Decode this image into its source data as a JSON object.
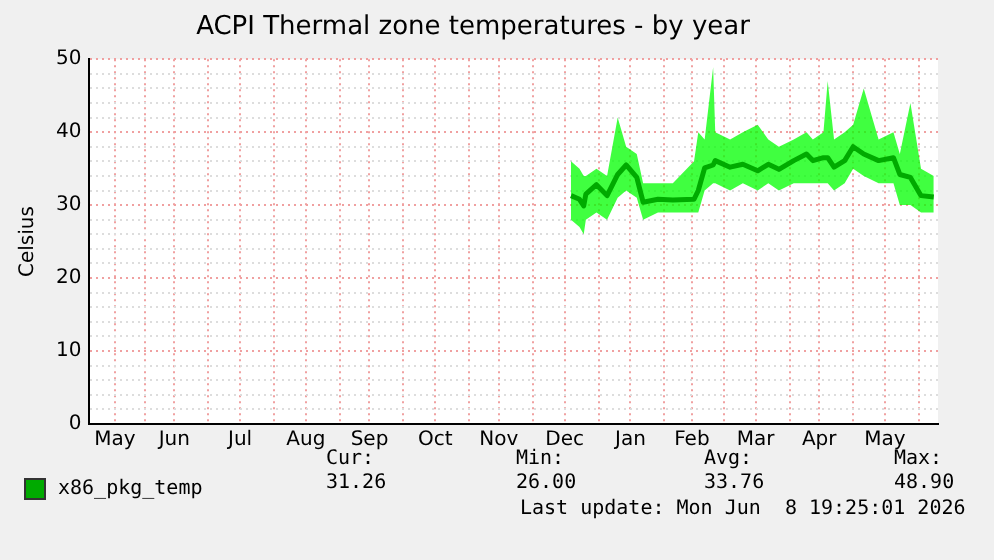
{
  "chart_data": {
    "type": "line",
    "title": "ACPI Thermal zone temperatures - by year",
    "ylabel": "Celsius",
    "x": [
      "2025-12-19",
      "2025-12-23",
      "2025-12-25",
      "2025-12-26",
      "2025-12-31",
      "2026-01-05",
      "2026-01-10",
      "2026-01-14",
      "2026-01-19",
      "2026-01-22",
      "2026-01-29",
      "2026-02-05",
      "2026-02-15",
      "2026-02-17",
      "2026-02-20",
      "2026-02-24",
      "2026-02-25",
      "2026-03-04",
      "2026-03-10",
      "2026-03-17",
      "2026-03-22",
      "2026-03-27",
      "2026-04-03",
      "2026-04-09",
      "2026-04-12",
      "2026-04-17",
      "2026-04-19",
      "2026-04-22",
      "2026-04-27",
      "2026-05-01",
      "2026-05-06",
      "2026-05-13",
      "2026-05-20",
      "2026-05-23",
      "2026-05-28",
      "2026-06-02",
      "2026-06-08"
    ],
    "series": [
      {
        "name": "x86_pkg_temp",
        "color": "#00aa00",
        "values": [
          31.3,
          30.8,
          29.9,
          31.5,
          32.8,
          31.3,
          34.2,
          35.5,
          33.8,
          30.4,
          30.8,
          30.7,
          30.8,
          32,
          35.1,
          35.5,
          36.1,
          35.2,
          35.6,
          34.7,
          35.6,
          34.9,
          36.1,
          37,
          36.1,
          36.5,
          36.5,
          35.2,
          36.1,
          38,
          37,
          36.1,
          36.5,
          34.2,
          33.8,
          31.3,
          31.1
        ],
        "lower": [
          28,
          27,
          26,
          28,
          29,
          28,
          31,
          32,
          31,
          28,
          29,
          29,
          29,
          29,
          32,
          33,
          33,
          32,
          33,
          32,
          33,
          32,
          33,
          33,
          33,
          33,
          33,
          32,
          33,
          35,
          34,
          33,
          33,
          30,
          30,
          29,
          29
        ],
        "upper": [
          36,
          35,
          34,
          34,
          35,
          34,
          42,
          38,
          37,
          33,
          33,
          33,
          36,
          40,
          39,
          48.9,
          40,
          39,
          40,
          41,
          39,
          38,
          39,
          40,
          39,
          40,
          47,
          39,
          40,
          41,
          46,
          39,
          40,
          37,
          44,
          35,
          34
        ]
      }
    ],
    "xlim": [
      "2025-05-06",
      "2026-06-10"
    ],
    "xticks": [
      {
        "value": "2025-05-18",
        "label": "May"
      },
      {
        "value": "2025-06-01",
        "label": null
      },
      {
        "value": "2025-06-15",
        "label": "Jun"
      },
      {
        "value": "2025-07-01",
        "label": null
      },
      {
        "value": "2025-07-16",
        "label": "Jul"
      },
      {
        "value": "2025-08-01",
        "label": null
      },
      {
        "value": "2025-08-16",
        "label": "Aug"
      },
      {
        "value": "2025-09-01",
        "label": null
      },
      {
        "value": "2025-09-15",
        "label": "Sep"
      },
      {
        "value": "2025-10-01",
        "label": null
      },
      {
        "value": "2025-10-16",
        "label": "Oct"
      },
      {
        "value": "2025-11-01",
        "label": null
      },
      {
        "value": "2025-11-15",
        "label": "Nov"
      },
      {
        "value": "2025-12-01",
        "label": null
      },
      {
        "value": "2025-12-16",
        "label": "Dec"
      },
      {
        "value": "2026-01-01",
        "label": null
      },
      {
        "value": "2026-01-16",
        "label": "Jan"
      },
      {
        "value": "2026-02-01",
        "label": null
      },
      {
        "value": "2026-02-14",
        "label": "Feb"
      },
      {
        "value": "2026-03-01",
        "label": null
      },
      {
        "value": "2026-03-16",
        "label": "Mar"
      },
      {
        "value": "2026-04-01",
        "label": null
      },
      {
        "value": "2026-04-15",
        "label": "Apr"
      },
      {
        "value": "2026-05-01",
        "label": null
      },
      {
        "value": "2026-05-16",
        "label": "May"
      },
      {
        "value": "2026-06-01",
        "label": null
      }
    ],
    "ylim": [
      0,
      50
    ],
    "yticks": [
      0,
      {
        "value": 2,
        "label": null
      },
      {
        "value": 4,
        "label": null
      },
      {
        "value": 6,
        "label": null
      },
      {
        "value": 8,
        "label": null
      },
      10,
      {
        "value": 12,
        "label": null
      },
      {
        "value": 14,
        "label": null
      },
      {
        "value": 16,
        "label": null
      },
      {
        "value": 18,
        "label": null
      },
      20,
      {
        "value": 22,
        "label": null
      },
      {
        "value": 24,
        "label": null
      },
      {
        "value": 26,
        "label": null
      },
      {
        "value": 28,
        "label": null
      },
      30,
      {
        "value": 32,
        "label": null
      },
      {
        "value": 34,
        "label": null
      },
      {
        "value": 36,
        "label": null
      },
      {
        "value": 38,
        "label": null
      },
      40,
      {
        "value": 42,
        "label": null
      },
      {
        "value": 44,
        "label": null
      },
      {
        "value": 46,
        "label": null
      },
      {
        "value": 48,
        "label": null
      },
      50
    ],
    "grid": true,
    "legend": "bottom",
    "marker": "none",
    "line_style": "solid",
    "annotations": [
      "Cur:",
      "31.26",
      "Min:",
      "26.00",
      "Avg:",
      "33.76",
      "Max:",
      "48.90",
      "Last update: Mon Jun  8 19:25:01 2026"
    ]
  }
}
